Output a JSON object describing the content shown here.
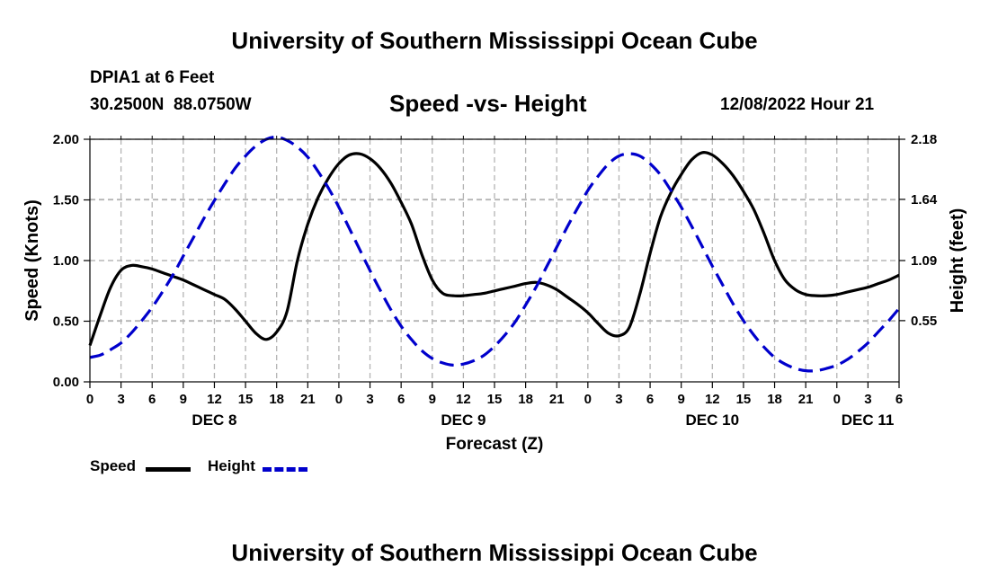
{
  "header": {
    "title": "University of Southern Mississippi Ocean Cube",
    "station": "DPIA1 at 6 Feet",
    "coords": "30.2500N  88.0750W",
    "plot_title": "Speed -vs- Height",
    "timestamp": "12/08/2022 Hour 21"
  },
  "footer": {
    "title": "University of Southern Mississippi Ocean Cube"
  },
  "legend": {
    "speed_label": "Speed",
    "height_label": "Height"
  },
  "colors": {
    "speed": "#000000",
    "height": "#0000cc",
    "grid": "#b4b4b4"
  },
  "chart_data": {
    "type": "line",
    "title": "Speed -vs- Height",
    "xlabel": "Forecast (Z)",
    "ylabel": "Speed (Knots)",
    "y2label": "Height (feet)",
    "x_unit": "hours since Dec 8 00Z",
    "xlim": [
      0,
      78
    ],
    "ylim": [
      0,
      2.0
    ],
    "y2lim": [
      0.0,
      2.18
    ],
    "x_ticks": [
      0,
      3,
      6,
      9,
      12,
      15,
      18,
      21,
      24,
      27,
      30,
      33,
      36,
      39,
      42,
      45,
      48,
      51,
      54,
      57,
      60,
      63,
      66,
      69,
      72,
      75,
      78
    ],
    "x_tick_labels": [
      "0",
      "3",
      "6",
      "9",
      "12",
      "15",
      "18",
      "21",
      "0",
      "3",
      "6",
      "9",
      "12",
      "15",
      "18",
      "21",
      "0",
      "3",
      "6",
      "9",
      "12",
      "15",
      "18",
      "21",
      "0",
      "3",
      "6"
    ],
    "day_labels": [
      {
        "x": 12,
        "label": "DEC 8"
      },
      {
        "x": 36,
        "label": "DEC 9"
      },
      {
        "x": 60,
        "label": "DEC 10"
      },
      {
        "x": 78,
        "label": "DEC 11"
      }
    ],
    "y_ticks": [
      0.0,
      0.5,
      1.0,
      1.5,
      2.0
    ],
    "y_tick_labels": [
      "0.00",
      "0.50",
      "1.00",
      "1.50",
      "2.00"
    ],
    "y2_ticks": [
      0.55,
      1.09,
      1.64,
      2.18
    ],
    "y2_tick_labels": [
      "0.55",
      "1.09",
      "1.64",
      "2.18"
    ],
    "grid": true,
    "series": [
      {
        "name": "Speed",
        "axis": "left",
        "style": "solid",
        "x": [
          0,
          1,
          2,
          3,
          4,
          5,
          6,
          7,
          8,
          9,
          10,
          11,
          12,
          13,
          14,
          15,
          16,
          17,
          18,
          19,
          20,
          21,
          22,
          23,
          24,
          25,
          26,
          27,
          28,
          29,
          30,
          31,
          32,
          33,
          34,
          35,
          36,
          37,
          38,
          39,
          40,
          41,
          42,
          43,
          44,
          45,
          46,
          47,
          48,
          49,
          50,
          51,
          52,
          53,
          54,
          55,
          56,
          57,
          58,
          59,
          60,
          61,
          62,
          63,
          64,
          65,
          66,
          67,
          68,
          69,
          70,
          71,
          72,
          73,
          74,
          75,
          76,
          77,
          78
        ],
        "values": [
          0.3,
          0.55,
          0.78,
          0.92,
          0.96,
          0.95,
          0.93,
          0.9,
          0.87,
          0.84,
          0.8,
          0.76,
          0.72,
          0.68,
          0.6,
          0.5,
          0.4,
          0.35,
          0.41,
          0.58,
          1.0,
          1.3,
          1.52,
          1.68,
          1.8,
          1.87,
          1.88,
          1.84,
          1.76,
          1.64,
          1.48,
          1.3,
          1.05,
          0.84,
          0.73,
          0.71,
          0.71,
          0.72,
          0.73,
          0.75,
          0.77,
          0.79,
          0.81,
          0.82,
          0.8,
          0.76,
          0.7,
          0.64,
          0.57,
          0.48,
          0.4,
          0.38,
          0.45,
          0.72,
          1.06,
          1.36,
          1.56,
          1.71,
          1.83,
          1.89,
          1.87,
          1.8,
          1.7,
          1.57,
          1.42,
          1.22,
          1.0,
          0.84,
          0.76,
          0.72,
          0.71,
          0.71,
          0.72,
          0.74,
          0.76,
          0.78,
          0.81,
          0.84,
          0.88
        ]
      },
      {
        "name": "Height",
        "axis": "right",
        "style": "dashed",
        "x": [
          0,
          1,
          2,
          3,
          4,
          5,
          6,
          7,
          8,
          9,
          10,
          11,
          12,
          13,
          14,
          15,
          16,
          17,
          18,
          19,
          20,
          21,
          22,
          23,
          24,
          25,
          26,
          27,
          28,
          29,
          30,
          31,
          32,
          33,
          34,
          35,
          36,
          37,
          38,
          39,
          40,
          41,
          42,
          43,
          44,
          45,
          46,
          47,
          48,
          49,
          50,
          51,
          52,
          53,
          54,
          55,
          56,
          57,
          58,
          59,
          60,
          61,
          62,
          63,
          64,
          65,
          66,
          67,
          68,
          69,
          70,
          71,
          72,
          73,
          74,
          75,
          76,
          77,
          78
        ],
        "values": [
          0.22,
          0.24,
          0.29,
          0.35,
          0.44,
          0.55,
          0.67,
          0.81,
          0.96,
          1.13,
          1.3,
          1.47,
          1.63,
          1.78,
          1.92,
          2.03,
          2.12,
          2.18,
          2.2,
          2.17,
          2.11,
          2.02,
          1.89,
          1.74,
          1.57,
          1.38,
          1.19,
          1.0,
          0.82,
          0.65,
          0.5,
          0.38,
          0.28,
          0.21,
          0.17,
          0.15,
          0.16,
          0.19,
          0.24,
          0.32,
          0.42,
          0.54,
          0.69,
          0.85,
          1.03,
          1.21,
          1.39,
          1.56,
          1.72,
          1.85,
          1.96,
          2.03,
          2.05,
          2.03,
          1.96,
          1.86,
          1.72,
          1.57,
          1.4,
          1.22,
          1.04,
          0.87,
          0.7,
          0.55,
          0.42,
          0.31,
          0.22,
          0.16,
          0.12,
          0.1,
          0.1,
          0.12,
          0.15,
          0.2,
          0.27,
          0.35,
          0.45,
          0.55,
          0.66
        ]
      }
    ]
  }
}
